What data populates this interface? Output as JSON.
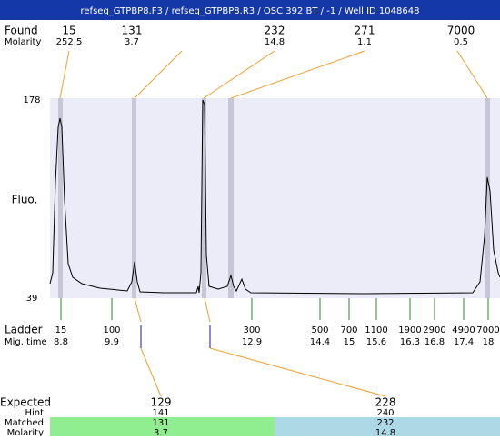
{
  "header": {
    "title": "refseq_GTPBP8.F3 / refseq_GTPBP8.R3 / OSC 392 BT  / -1 / Well ID 1048648"
  },
  "found": {
    "label": "Found",
    "molarity_label": "Molarity",
    "peaks": [
      {
        "size": 15,
        "molarity": 252.5
      },
      {
        "size": 131,
        "molarity": 3.7
      },
      {
        "size": 232,
        "molarity": 14.8
      },
      {
        "size": 271,
        "molarity": 1.1
      },
      {
        "size": 7000,
        "molarity": 0.5
      }
    ]
  },
  "axis": {
    "label": "Fluo.",
    "top": 178,
    "bottom": 39
  },
  "ladder": {
    "label": "Ladder",
    "time_label": "Mig. time",
    "items": [
      {
        "size": 15,
        "time": 8.8
      },
      {
        "size": 100,
        "time": 9.9
      },
      {
        "size": 300,
        "time": 12.9
      },
      {
        "size": 500,
        "time": 14.4
      },
      {
        "size": 700,
        "time": 15
      },
      {
        "size": 1100,
        "time": 15.6
      },
      {
        "size": 1900,
        "time": 16.3
      },
      {
        "size": 2900,
        "time": 16.8
      },
      {
        "size": 4900,
        "time": 17.4
      },
      {
        "size": 7000,
        "time": 18
      }
    ]
  },
  "expected": {
    "label": "Expected",
    "hint_label": "Hint",
    "matched_label": "Matched",
    "molarity_label": "Molarity",
    "columns": [
      {
        "expected": 129,
        "hint": 141,
        "matched": 131,
        "molarity": 3.7
      },
      {
        "expected": 228,
        "hint": 240,
        "matched": 232,
        "molarity": 14.8
      }
    ]
  }
}
